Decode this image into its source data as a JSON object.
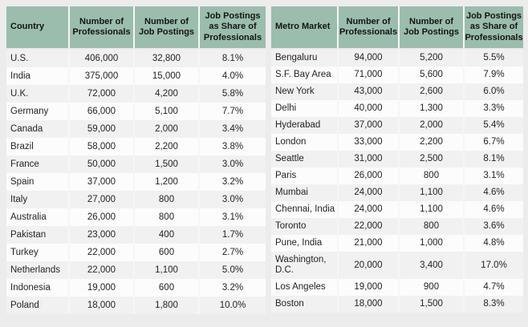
{
  "colors": {
    "page_background": "#ECECEC",
    "header_background": "#9BBDAD",
    "row_odd": "#F1F1F1",
    "row_even": "#FCFCFC",
    "text": "#242424"
  },
  "chart_data": [
    {
      "type": "table",
      "name": "job-postings-by-country",
      "headers": [
        "Country",
        "Number of Professionals",
        "Number of Job Postings",
        "Job Postings as Share of Professionals"
      ],
      "rows": [
        [
          "U.S.",
          "406,000",
          "32,800",
          "8.1%"
        ],
        [
          "India",
          "375,000",
          "15,000",
          "4.0%"
        ],
        [
          "U.K.",
          "72,000",
          "4,200",
          "5.8%"
        ],
        [
          "Germany",
          "66,000",
          "5,100",
          "7.7%"
        ],
        [
          "Canada",
          "59,000",
          "2,000",
          "3.4%"
        ],
        [
          "Brazil",
          "58,000",
          "2,200",
          "3.8%"
        ],
        [
          "France",
          "50,000",
          "1,500",
          "3.0%"
        ],
        [
          "Spain",
          "37,000",
          "1,200",
          "3.2%"
        ],
        [
          "Italy",
          "27,000",
          "800",
          "3.0%"
        ],
        [
          "Australia",
          "26,000",
          "800",
          "3.1%"
        ],
        [
          "Pakistan",
          "23,000",
          "400",
          "1.7%"
        ],
        [
          "Turkey",
          "22,000",
          "600",
          "2.7%"
        ],
        [
          "Netherlands",
          "22,000",
          "1,100",
          "5.0%"
        ],
        [
          "Indonesia",
          "19,000",
          "600",
          "3.2%"
        ],
        [
          "Poland",
          "18,000",
          "1,800",
          "10.0%"
        ]
      ]
    },
    {
      "type": "table",
      "name": "job-postings-by-metro-market",
      "headers": [
        "Metro Market",
        "Number of Professionals",
        "Number of Job Postings",
        "Job Postings as Share of Professionals"
      ],
      "rows": [
        [
          "Bengaluru",
          "94,000",
          "5,200",
          "5.5%"
        ],
        [
          "S.F. Bay Area",
          "71,000",
          "5,600",
          "7.9%"
        ],
        [
          "New York",
          "43,000",
          "2,600",
          "6.0%"
        ],
        [
          "Delhi",
          "40,000",
          "1,300",
          "3.3%"
        ],
        [
          "Hyderabad",
          "37,000",
          "2,000",
          "5.4%"
        ],
        [
          "London",
          "33,000",
          "2,200",
          "6.7%"
        ],
        [
          "Seattle",
          "31,000",
          "2,500",
          "8.1%"
        ],
        [
          "Paris",
          "26,000",
          "800",
          "3.1%"
        ],
        [
          "Mumbai",
          "24,000",
          "1,100",
          "4.6%"
        ],
        [
          "Chennai, India",
          "24,000",
          "1,100",
          "4.6%"
        ],
        [
          "Toronto",
          "22,000",
          "800",
          "3.6%"
        ],
        [
          "Pune, India",
          "21,000",
          "1,000",
          "4.8%"
        ],
        [
          "Washington, D.C.",
          "20,000",
          "3,400",
          "17.0%"
        ],
        [
          "Los Angeles",
          "19,000",
          "900",
          "4.7%"
        ],
        [
          "Boston",
          "18,000",
          "1,500",
          "8.3%"
        ]
      ],
      "tall_row_label": "Washington, D.C."
    }
  ]
}
